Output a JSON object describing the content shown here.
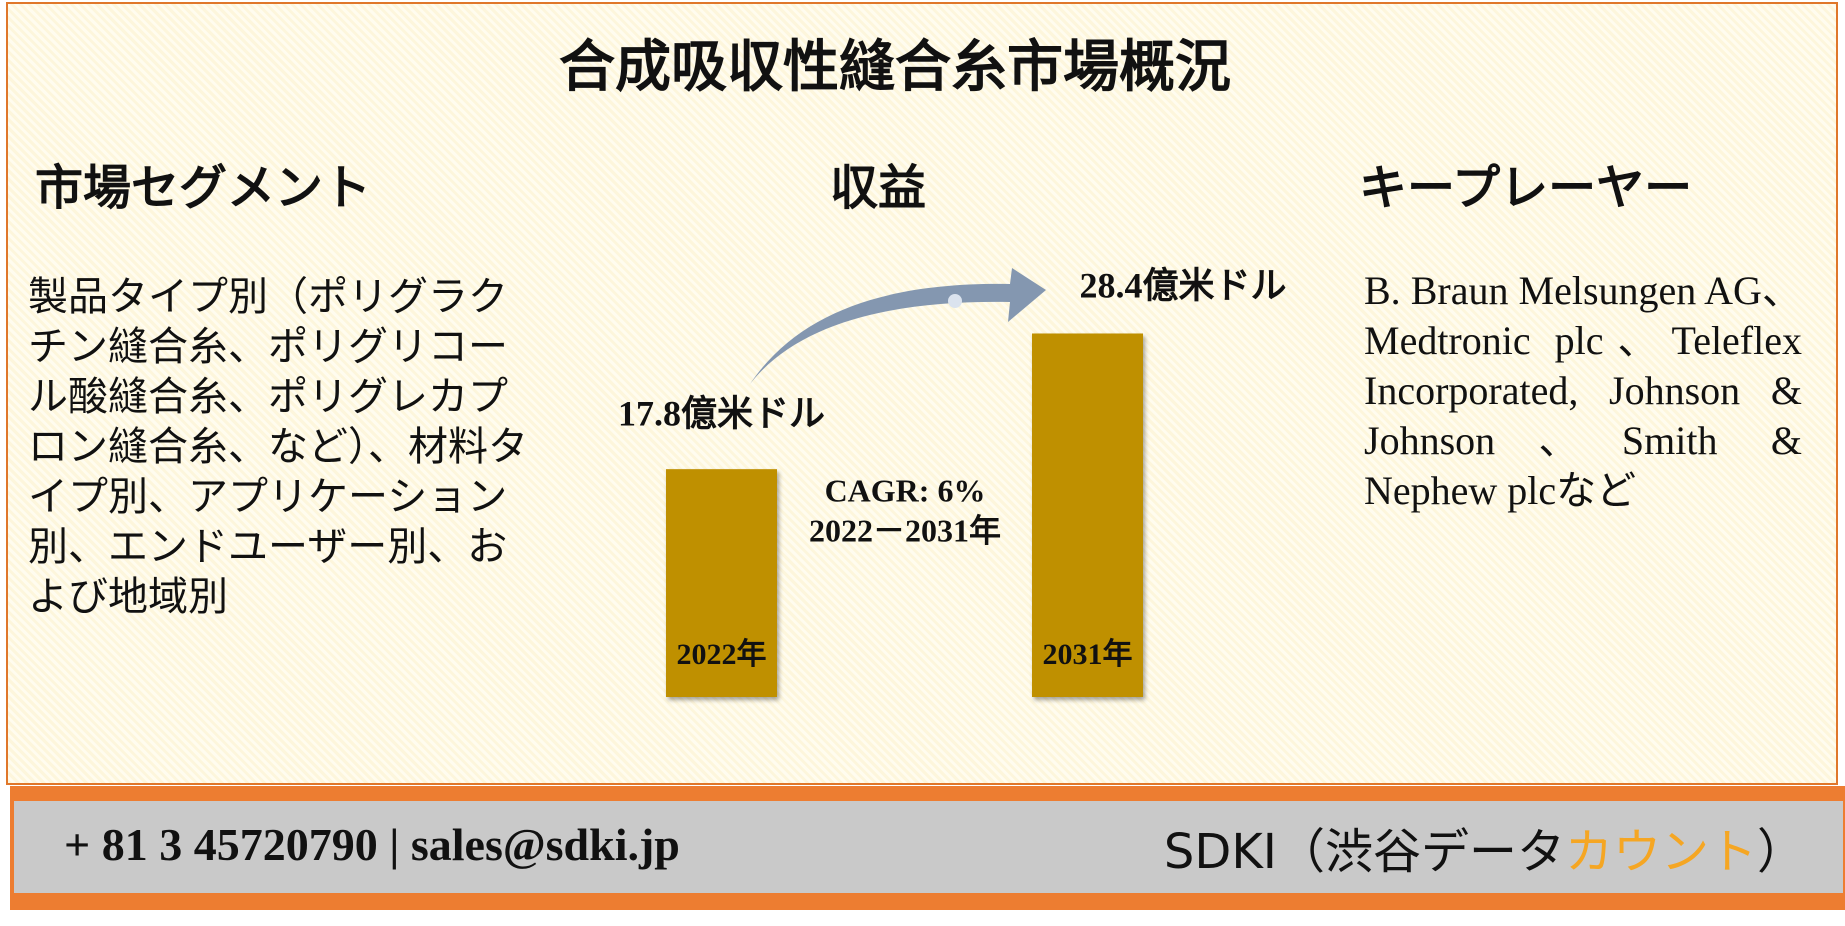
{
  "title": "合成吸収性縫合糸市場概況",
  "segments": {
    "heading": "市場セグメント",
    "text": "製品タイプ別（ポリグラクチン縫合糸、ポリグリコール酸縫合糸、ポリグレカプロン縫合糸、など）、材料タイプ別、アプリケーション別、エンドユーザー別、および地域別"
  },
  "revenue": {
    "heading": "収益",
    "chart_data": {
      "type": "bar",
      "categories": [
        "2022年",
        "2031年"
      ],
      "values": [
        17.8,
        28.4
      ],
      "value_labels": [
        "17.8億米ドル",
        "28.4億米ドル"
      ],
      "color": "#bf9000",
      "cagr": "CAGR: 6%",
      "period": "2022－2031年"
    }
  },
  "players": {
    "heading": "キープレーヤー",
    "text": "B. Braun Melsungen AG、Medtronic plc、Teleflex Incorporated, Johnson & Johnson、Smith & Nephew plcなど"
  },
  "footer": {
    "contact": "+ 81 3 45720790 | sales@sdki.jp",
    "company": "SDKI（渋谷データ",
    "company_highlight": "カウント",
    "company_end": "）"
  }
}
